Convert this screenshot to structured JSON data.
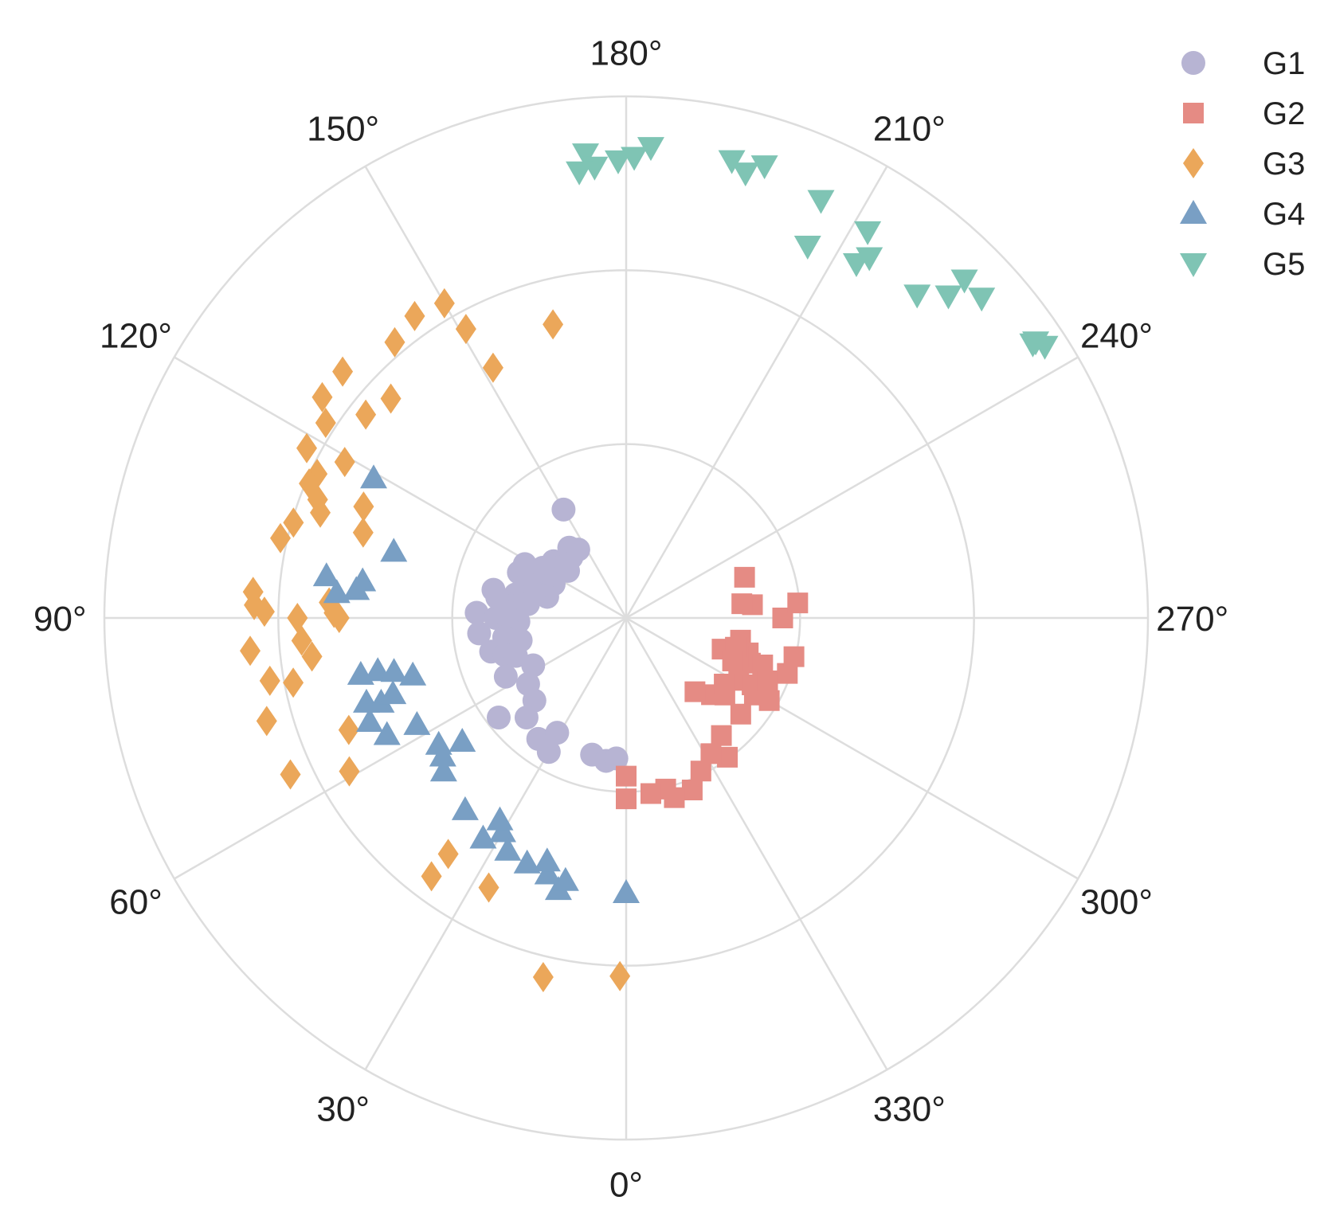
{
  "chart_data": {
    "type": "scatter",
    "projection": "polar",
    "theta_zero_location": "bottom",
    "theta_direction": "clockwise",
    "rlim": [
      0,
      3
    ],
    "r_grid": [
      1,
      2,
      3
    ],
    "theta_ticks": [
      0,
      30,
      60,
      90,
      120,
      150,
      180,
      210,
      240,
      270,
      300,
      330
    ],
    "theta_tick_labels": [
      "0°",
      "30°",
      "60°",
      "90°",
      "120°",
      "150°",
      "180°",
      "210°",
      "240°",
      "270°",
      "300°",
      "330°"
    ],
    "legend_position": "top-right",
    "series": [
      {
        "name": "G1",
        "marker": "circle",
        "color": "#b7b4d3",
        "points": [
          {
            "theta": 150,
            "r": 0.72
          },
          {
            "theta": 141,
            "r": 0.52
          },
          {
            "theta": 138,
            "r": 0.47
          },
          {
            "theta": 145,
            "r": 0.48
          },
          {
            "theta": 128,
            "r": 0.53
          },
          {
            "theta": 127,
            "r": 0.48
          },
          {
            "theta": 129,
            "r": 0.43
          },
          {
            "theta": 121,
            "r": 0.56
          },
          {
            "theta": 113,
            "r": 0.67
          },
          {
            "theta": 112,
            "r": 0.6
          },
          {
            "theta": 114,
            "r": 0.57
          },
          {
            "theta": 111,
            "r": 0.5
          },
          {
            "theta": 115,
            "r": 0.46
          },
          {
            "theta": 109,
            "r": 0.59
          },
          {
            "theta": 105,
            "r": 0.47
          },
          {
            "theta": 102,
            "r": 0.78
          },
          {
            "theta": 102,
            "r": 0.65
          },
          {
            "theta": 104,
            "r": 0.55
          },
          {
            "theta": 97,
            "r": 0.7
          },
          {
            "theta": 96,
            "r": 0.63
          },
          {
            "theta": 98,
            "r": 0.57
          },
          {
            "theta": 94,
            "r": 0.7
          },
          {
            "theta": 92,
            "r": 0.86
          },
          {
            "theta": 90,
            "r": 0.75
          },
          {
            "theta": 88,
            "r": 0.62
          },
          {
            "theta": 85,
            "r": 0.68
          },
          {
            "theta": 81,
            "r": 0.71
          },
          {
            "theta": 78,
            "r": 0.62
          },
          {
            "theta": 76,
            "r": 0.8
          },
          {
            "theta": 73,
            "r": 0.73
          },
          {
            "theta": 71,
            "r": 0.67
          },
          {
            "theta": 64,
            "r": 0.77
          },
          {
            "theta": 63,
            "r": 0.6
          },
          {
            "theta": 56,
            "r": 0.68
          },
          {
            "theta": 52,
            "r": 0.93
          },
          {
            "theta": 48,
            "r": 0.71
          },
          {
            "theta": 45,
            "r": 0.81
          },
          {
            "theta": 36,
            "r": 0.86
          },
          {
            "theta": 31,
            "r": 0.77
          },
          {
            "theta": 30,
            "r": 0.89
          },
          {
            "theta": 14,
            "r": 0.81
          },
          {
            "theta": 8,
            "r": 0.83
          },
          {
            "theta": 4,
            "r": 0.81
          },
          {
            "theta": 118,
            "r": 0.66
          },
          {
            "theta": 84,
            "r": 0.85
          },
          {
            "theta": 99,
            "r": 0.75
          }
        ]
      },
      {
        "name": "G2",
        "marker": "square",
        "color": "#e58b84",
        "points": [
          {
            "theta": 281,
            "r": 0.67
          },
          {
            "theta": 286,
            "r": 0.73
          },
          {
            "theta": 290,
            "r": 0.76
          },
          {
            "theta": 289,
            "r": 0.83
          },
          {
            "theta": 289,
            "r": 0.68
          },
          {
            "theta": 288,
            "r": 0.58
          },
          {
            "theta": 299,
            "r": 0.74
          },
          {
            "theta": 270,
            "r": 0.9
          },
          {
            "theta": 265,
            "r": 0.99
          },
          {
            "theta": 264,
            "r": 0.73
          },
          {
            "theta": 251,
            "r": 0.72
          },
          {
            "theta": 263,
            "r": 0.67
          },
          {
            "theta": 289,
            "r": 0.98
          },
          {
            "theta": 300,
            "r": 0.95
          },
          {
            "theta": 310,
            "r": 0.86
          },
          {
            "theta": 308,
            "r": 0.72
          },
          {
            "theta": 312,
            "r": 0.66
          },
          {
            "theta": 298,
            "r": 0.82
          },
          {
            "theta": 301,
            "r": 0.86
          },
          {
            "theta": 283,
            "r": 0.99
          },
          {
            "theta": 317,
            "r": 0.58
          },
          {
            "theta": 321,
            "r": 0.87
          },
          {
            "theta": 324,
            "r": 0.99
          },
          {
            "theta": 328,
            "r": 0.92
          },
          {
            "theta": 334,
            "r": 0.98
          },
          {
            "theta": 339,
            "r": 1.06
          },
          {
            "theta": 345,
            "r": 1.07
          },
          {
            "theta": 347,
            "r": 1.01
          },
          {
            "theta": 352,
            "r": 1.02
          },
          {
            "theta": 0,
            "r": 1.04
          },
          {
            "theta": 360,
            "r": 0.91
          },
          {
            "theta": 294,
            "r": 0.89
          },
          {
            "theta": 304,
            "r": 0.68
          },
          {
            "theta": 285,
            "r": 0.65
          },
          {
            "theta": 292,
            "r": 0.66
          }
        ]
      },
      {
        "name": "G3",
        "marker": "diamond",
        "color": "#eba75a",
        "points": [
          {
            "theta": 145,
            "r": 2.12
          },
          {
            "theta": 140,
            "r": 2.07
          },
          {
            "theta": 131,
            "r": 2.16
          },
          {
            "theta": 126,
            "r": 2.16
          },
          {
            "theta": 123,
            "r": 2.06
          },
          {
            "theta": 118,
            "r": 2.08
          },
          {
            "theta": 115,
            "r": 1.96
          },
          {
            "theta": 113,
            "r": 1.98
          },
          {
            "theta": 119,
            "r": 1.85
          },
          {
            "theta": 113,
            "r": 1.64
          },
          {
            "theta": 111,
            "r": 1.9
          },
          {
            "theta": 109,
            "r": 1.86
          },
          {
            "theta": 106,
            "r": 1.99
          },
          {
            "theta": 103,
            "r": 2.04
          },
          {
            "theta": 94,
            "r": 2.15
          },
          {
            "theta": 92,
            "r": 2.14
          },
          {
            "theta": 91,
            "r": 2.08
          },
          {
            "theta": 85,
            "r": 2.17
          },
          {
            "theta": 80,
            "r": 2.08
          },
          {
            "theta": 79,
            "r": 1.95
          },
          {
            "theta": 74,
            "r": 2.15
          },
          {
            "theta": 65,
            "r": 2.13
          },
          {
            "theta": 61,
            "r": 1.82
          },
          {
            "theta": 68,
            "r": 1.72
          },
          {
            "theta": 90,
            "r": 1.89
          },
          {
            "theta": 93,
            "r": 1.71
          },
          {
            "theta": 91,
            "r": 1.68
          },
          {
            "theta": 86,
            "r": 1.87
          },
          {
            "theta": 90,
            "r": 1.65
          },
          {
            "theta": 83,
            "r": 1.82
          },
          {
            "theta": 108,
            "r": 1.59
          },
          {
            "theta": 150,
            "r": 2.09
          },
          {
            "theta": 151,
            "r": 1.9
          },
          {
            "theta": 152,
            "r": 1.63
          },
          {
            "theta": 133,
            "r": 1.85
          },
          {
            "theta": 128,
            "r": 1.9
          },
          {
            "theta": 37,
            "r": 1.7
          },
          {
            "theta": 37,
            "r": 1.86
          },
          {
            "theta": 27,
            "r": 1.74
          },
          {
            "theta": 13,
            "r": 2.12
          },
          {
            "theta": 1,
            "r": 2.06
          },
          {
            "theta": 166,
            "r": 1.74
          }
        ]
      },
      {
        "name": "G4",
        "marker": "triangle-up",
        "color": "#799fc4",
        "points": [
          {
            "theta": 119,
            "r": 1.66
          },
          {
            "theta": 106,
            "r": 1.39
          },
          {
            "theta": 98,
            "r": 1.74
          },
          {
            "theta": 98,
            "r": 1.53
          },
          {
            "theta": 95,
            "r": 1.67
          },
          {
            "theta": 96,
            "r": 1.56
          },
          {
            "theta": 78,
            "r": 1.46
          },
          {
            "theta": 78,
            "r": 1.56
          },
          {
            "theta": 77,
            "r": 1.37
          },
          {
            "theta": 75,
            "r": 1.27
          },
          {
            "theta": 72,
            "r": 1.57
          },
          {
            "theta": 71,
            "r": 1.49
          },
          {
            "theta": 72,
            "r": 1.41
          },
          {
            "theta": 63,
            "r": 1.35
          },
          {
            "theta": 64,
            "r": 1.53
          },
          {
            "theta": 56,
            "r": 1.3
          },
          {
            "theta": 53,
            "r": 1.32
          },
          {
            "theta": 53,
            "r": 1.18
          },
          {
            "theta": 50,
            "r": 1.37
          },
          {
            "theta": 40,
            "r": 1.44
          },
          {
            "theta": 33,
            "r": 1.51
          },
          {
            "theta": 30,
            "r": 1.42
          },
          {
            "theta": 27,
            "r": 1.5
          },
          {
            "theta": 22,
            "r": 1.52
          },
          {
            "theta": 17,
            "r": 1.54
          },
          {
            "theta": 14,
            "r": 1.61
          },
          {
            "theta": 13,
            "r": 1.55
          },
          {
            "theta": 0,
            "r": 1.58
          },
          {
            "theta": 32,
            "r": 1.37
          },
          {
            "theta": 18,
            "r": 1.47
          },
          {
            "theta": 68,
            "r": 1.59
          }
        ]
      },
      {
        "name": "G5",
        "marker": "triangle-down",
        "color": "#7fc4b4",
        "points": [
          {
            "theta": 175,
            "r": 2.68
          },
          {
            "theta": 176,
            "r": 2.6
          },
          {
            "theta": 174,
            "r": 2.58
          },
          {
            "theta": 179,
            "r": 2.63
          },
          {
            "theta": 181,
            "r": 2.65
          },
          {
            "theta": 183,
            "r": 2.71
          },
          {
            "theta": 193,
            "r": 2.7
          },
          {
            "theta": 195,
            "r": 2.65
          },
          {
            "theta": 197,
            "r": 2.72
          },
          {
            "theta": 205,
            "r": 2.65
          },
          {
            "theta": 206,
            "r": 2.38
          },
          {
            "theta": 212,
            "r": 2.62
          },
          {
            "theta": 213,
            "r": 2.43
          },
          {
            "theta": 214,
            "r": 2.5
          },
          {
            "theta": 225,
            "r": 2.75
          },
          {
            "theta": 228,
            "r": 2.75
          },
          {
            "theta": 225,
            "r": 2.62
          },
          {
            "theta": 222,
            "r": 2.5
          },
          {
            "theta": 236,
            "r": 2.82
          },
          {
            "theta": 237,
            "r": 2.87
          },
          {
            "theta": 236,
            "r": 2.84
          }
        ]
      }
    ]
  }
}
